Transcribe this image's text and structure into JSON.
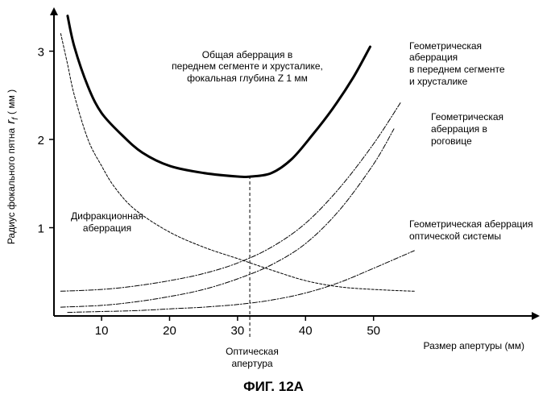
{
  "figure_label": "ФИГ. 12А",
  "chart_data": {
    "type": "line",
    "title": "",
    "xlabel": "Размер апертуры (мм)",
    "ylabel_main": "Радиус фокального пятна",
    "ylabel_symbol": "r",
    "ylabel_subscript": "f",
    "ylabel_unit": "( мм )",
    "xlim": [
      3,
      57
    ],
    "ylim": [
      0,
      3.5
    ],
    "xticks": [
      10,
      20,
      30,
      40,
      50
    ],
    "yticks": [
      1,
      2,
      3
    ],
    "grid": false,
    "marker": {
      "x": 31.8,
      "label_lines": [
        "Оптическая",
        "апертура"
      ]
    },
    "series": [
      {
        "id": "total",
        "label_lines": [
          "Общая аберрация в",
          "переднем сегменте и хрусталике,",
          "фокальная глубина Z 1 мм"
        ],
        "style": "solid",
        "points": [
          [
            5,
            3.4
          ],
          [
            6,
            3.05
          ],
          [
            8,
            2.6
          ],
          [
            10,
            2.3
          ],
          [
            13,
            2.05
          ],
          [
            16,
            1.85
          ],
          [
            20,
            1.7
          ],
          [
            25,
            1.62
          ],
          [
            30,
            1.58
          ],
          [
            32,
            1.58
          ],
          [
            35,
            1.62
          ],
          [
            38,
            1.78
          ],
          [
            41,
            2.05
          ],
          [
            44,
            2.35
          ],
          [
            47,
            2.7
          ],
          [
            49.5,
            3.05
          ]
        ]
      },
      {
        "id": "diffraction",
        "label_lines": [
          "Дифракционная",
          "аберрация"
        ],
        "style": "dashed",
        "points": [
          [
            4,
            3.2
          ],
          [
            5,
            2.85
          ],
          [
            6,
            2.5
          ],
          [
            8,
            2.0
          ],
          [
            10,
            1.7
          ],
          [
            12,
            1.45
          ],
          [
            15,
            1.2
          ],
          [
            20,
            0.95
          ],
          [
            25,
            0.78
          ],
          [
            30,
            0.65
          ],
          [
            35,
            0.52
          ],
          [
            40,
            0.4
          ],
          [
            45,
            0.33
          ],
          [
            50,
            0.3
          ],
          [
            56,
            0.28
          ]
        ]
      },
      {
        "id": "anterior",
        "label_lines": [
          "Геометрическая",
          "аберрация",
          "в переднем сегменте",
          "и хрусталике"
        ],
        "style": "dashdot",
        "points": [
          [
            4,
            0.28
          ],
          [
            10,
            0.3
          ],
          [
            15,
            0.34
          ],
          [
            20,
            0.4
          ],
          [
            25,
            0.48
          ],
          [
            30,
            0.6
          ],
          [
            35,
            0.78
          ],
          [
            40,
            1.05
          ],
          [
            45,
            1.45
          ],
          [
            50,
            1.95
          ],
          [
            54,
            2.42
          ]
        ]
      },
      {
        "id": "cornea",
        "label_lines": [
          "Геометрическая",
          "аберрация в",
          "роговице"
        ],
        "style": "dashdot",
        "points": [
          [
            4,
            0.1
          ],
          [
            10,
            0.12
          ],
          [
            15,
            0.16
          ],
          [
            20,
            0.22
          ],
          [
            25,
            0.3
          ],
          [
            30,
            0.42
          ],
          [
            35,
            0.58
          ],
          [
            40,
            0.82
          ],
          [
            45,
            1.2
          ],
          [
            50,
            1.72
          ],
          [
            53,
            2.12
          ]
        ]
      },
      {
        "id": "optical",
        "label_lines": [
          "Геометрическая аберрация",
          "оптической системы"
        ],
        "style": "dashdot",
        "points": [
          [
            5,
            0.04
          ],
          [
            10,
            0.05
          ],
          [
            15,
            0.06
          ],
          [
            20,
            0.08
          ],
          [
            25,
            0.1
          ],
          [
            30,
            0.13
          ],
          [
            35,
            0.18
          ],
          [
            40,
            0.26
          ],
          [
            45,
            0.38
          ],
          [
            50,
            0.54
          ],
          [
            56,
            0.74
          ]
        ]
      }
    ]
  }
}
